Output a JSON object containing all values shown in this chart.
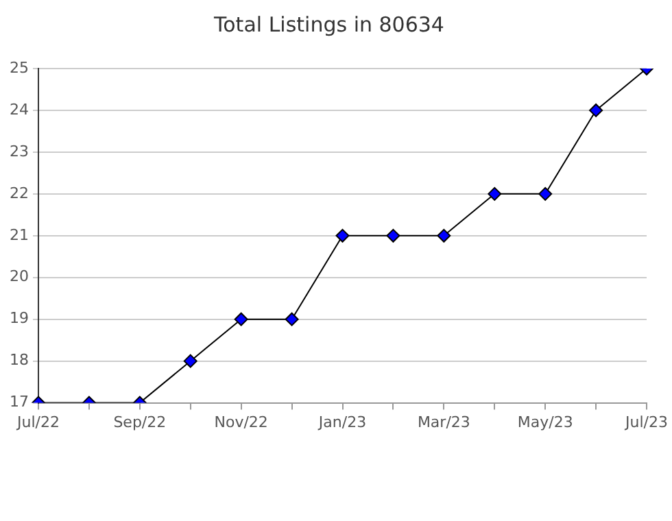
{
  "chart_data": {
    "type": "line",
    "title": "Total Listings in 80634",
    "categories": [
      "Jul/22",
      null,
      "Sep/22",
      null,
      "Nov/22",
      null,
      "Jan/23",
      null,
      "Mar/23",
      null,
      "May/23",
      null,
      "Jul/23"
    ],
    "series": [
      {
        "color": "#0000ff",
        "values": [
          17,
          17,
          17,
          18,
          19,
          19,
          21,
          21,
          21,
          22,
          22,
          24,
          25
        ]
      }
    ],
    "ylim": [
      17,
      25
    ],
    "yticks": [
      17,
      18,
      19,
      20,
      21,
      22,
      23,
      24,
      25
    ],
    "grid": "y",
    "legend": false,
    "marker": "diamond",
    "line_style": "solid"
  }
}
